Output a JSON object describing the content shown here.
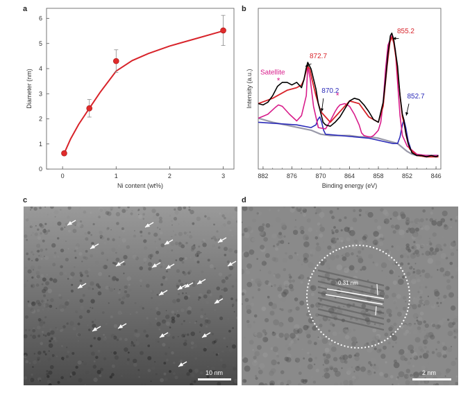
{
  "panels": {
    "a": {
      "letter": "a"
    },
    "b": {
      "letter": "b"
    },
    "c": {
      "letter": "c",
      "scale_label": "10 nm"
    },
    "d": {
      "letter": "d",
      "scale_label": "2 nm",
      "lattice_label": "0.31 nm"
    }
  },
  "chart_data": [
    {
      "type": "line",
      "panel": "a",
      "title": "",
      "xlabel": "Ni content  (wt%)",
      "ylabel": "Diameter (nm)",
      "xlim": [
        -0.3,
        3.2
      ],
      "ylim": [
        0,
        6.4
      ],
      "xticks": [
        "0",
        "1",
        "2",
        "3"
      ],
      "yticks": [
        "0",
        "1",
        "2",
        "3",
        "4",
        "5",
        "6"
      ],
      "points": [
        {
          "x": 0.03,
          "y": 0.63,
          "err": 0.08
        },
        {
          "x": 0.5,
          "y": 2.42,
          "err": 0.35
        },
        {
          "x": 1.0,
          "y": 4.3,
          "err": 0.45
        },
        {
          "x": 3.0,
          "y": 5.52,
          "err": 0.6
        }
      ],
      "fit_curve": [
        {
          "x": 0.03,
          "y": 0.63
        },
        {
          "x": 0.15,
          "y": 1.2
        },
        {
          "x": 0.3,
          "y": 1.78
        },
        {
          "x": 0.5,
          "y": 2.42
        },
        {
          "x": 0.7,
          "y": 3.05
        },
        {
          "x": 1.0,
          "y": 3.9
        },
        {
          "x": 1.3,
          "y": 4.32
        },
        {
          "x": 1.6,
          "y": 4.6
        },
        {
          "x": 2.0,
          "y": 4.9
        },
        {
          "x": 2.5,
          "y": 5.2
        },
        {
          "x": 3.0,
          "y": 5.5
        }
      ],
      "colors": {
        "curve": "#d8232a",
        "marker": "#e02b2b",
        "error": "#888888"
      }
    },
    {
      "type": "line",
      "panel": "b",
      "title": "",
      "xlabel": "Binding energy (eV)",
      "ylabel": "Intensity (a.u.)",
      "xlim": [
        883,
        845
      ],
      "xticks": [
        "882",
        "876",
        "870",
        "864",
        "858",
        "852",
        "846"
      ],
      "grid": false,
      "annotations": [
        {
          "text": "Satellite",
          "x": 880.0,
          "y": 0.66,
          "color": "#d81b8a"
        },
        {
          "text": "*",
          "x": 878.8,
          "y": 0.59,
          "color": "#d81b8a"
        },
        {
          "text": "872.7",
          "x": 870.5,
          "y": 0.78,
          "color": "#d8232a"
        },
        {
          "text": "870.2",
          "x": 868.0,
          "y": 0.52,
          "color": "#2a2ab8"
        },
        {
          "text": "*",
          "x": 866.5,
          "y": 0.48,
          "color": "#d81b8a"
        },
        {
          "text": "855.2",
          "x": 852.3,
          "y": 0.97,
          "color": "#d8232a"
        },
        {
          "text": "852.7",
          "x": 850.2,
          "y": 0.48,
          "color": "#2a2ab8"
        }
      ],
      "series": [
        {
          "name": "",
          "color": "#000000",
          "x": [
            883,
            882,
            881,
            880,
            879,
            878,
            877,
            876,
            875,
            874,
            873.5,
            873,
            872.7,
            872,
            871,
            870.5,
            870,
            869.5,
            869,
            868,
            867,
            866,
            865,
            864,
            863,
            862,
            861,
            860,
            859,
            858,
            857,
            856.5,
            856,
            855.5,
            855.2,
            854.8,
            854,
            853.5,
            853,
            852.7,
            852.3,
            851.8,
            851,
            850,
            849,
            848,
            847,
            846,
            845.5
          ],
          "y": [
            0.44,
            0.43,
            0.45,
            0.5,
            0.57,
            0.6,
            0.6,
            0.58,
            0.6,
            0.56,
            0.62,
            0.71,
            0.75,
            0.7,
            0.55,
            0.44,
            0.37,
            0.3,
            0.28,
            0.27,
            0.3,
            0.34,
            0.4,
            0.46,
            0.48,
            0.47,
            0.43,
            0.38,
            0.32,
            0.3,
            0.45,
            0.62,
            0.82,
            0.95,
            0.97,
            0.92,
            0.72,
            0.5,
            0.36,
            0.32,
            0.22,
            0.14,
            0.07,
            0.05,
            0.05,
            0.04,
            0.05,
            0.04,
            0.05
          ]
        },
        {
          "name": "",
          "color": "#d8232a",
          "x": [
            883,
            880,
            877,
            875,
            874,
            873.5,
            873,
            872.7,
            872.3,
            871.8,
            871,
            870,
            868,
            866,
            864,
            862,
            860,
            858,
            857,
            856.2,
            855.6,
            855.2,
            854.8,
            854.2,
            853.5,
            853,
            852.7,
            852.2,
            851.5,
            850,
            848,
            845.5
          ],
          "y": [
            0.44,
            0.48,
            0.54,
            0.56,
            0.58,
            0.62,
            0.69,
            0.72,
            0.7,
            0.62,
            0.5,
            0.38,
            0.3,
            0.38,
            0.46,
            0.44,
            0.34,
            0.3,
            0.42,
            0.72,
            0.9,
            0.94,
            0.9,
            0.75,
            0.5,
            0.34,
            0.3,
            0.2,
            0.1,
            0.05,
            0.04,
            0.04
          ]
        },
        {
          "name": "",
          "color": "#d81b8a",
          "x": [
            883,
            881,
            879.5,
            878.8,
            878,
            876.5,
            875,
            874,
            873,
            872.7,
            872.2,
            871.5,
            870.5,
            869,
            868,
            867,
            866.5,
            866,
            865,
            864,
            863,
            862,
            861.5,
            861,
            860,
            859.5,
            859,
            858.5,
            858,
            857.5,
            857,
            856.5,
            856,
            855.2,
            854.5,
            854,
            853.5,
            853,
            852,
            850,
            848,
            845.5
          ],
          "y": [
            0.33,
            0.36,
            0.41,
            0.43,
            0.42,
            0.36,
            0.31,
            0.35,
            0.5,
            0.72,
            0.63,
            0.42,
            0.26,
            0.25,
            0.31,
            0.38,
            0.41,
            0.43,
            0.44,
            0.42,
            0.36,
            0.28,
            0.22,
            0.2,
            0.19,
            0.19,
            0.2,
            0.22,
            0.24,
            0.3,
            0.45,
            0.7,
            0.88,
            0.95,
            0.85,
            0.6,
            0.35,
            0.2,
            0.12,
            0.06,
            0.05,
            0.05
          ]
        },
        {
          "name": "",
          "color": "#2a2ab8",
          "x": [
            883,
            875,
            872,
            871,
            870.6,
            870.2,
            869.8,
            869.4,
            869,
            866,
            860,
            855,
            854,
            853.5,
            853,
            852.7,
            852.3,
            851.8,
            851,
            850,
            845.5
          ],
          "y": [
            0.3,
            0.28,
            0.26,
            0.28,
            0.32,
            0.34,
            0.3,
            0.24,
            0.21,
            0.2,
            0.18,
            0.14,
            0.14,
            0.19,
            0.28,
            0.32,
            0.26,
            0.16,
            0.07,
            0.05,
            0.05
          ]
        },
        {
          "name": "",
          "color": "#9a9aaa",
          "x": [
            883,
            880,
            876,
            872,
            870,
            868,
            866,
            864,
            862,
            860,
            858,
            856,
            855,
            854,
            853,
            852,
            851,
            850,
            848,
            845.5
          ],
          "y": [
            0.33,
            0.3,
            0.27,
            0.24,
            0.21,
            0.2,
            0.2,
            0.2,
            0.19,
            0.19,
            0.18,
            0.16,
            0.15,
            0.14,
            0.11,
            0.08,
            0.06,
            0.05,
            0.05,
            0.05
          ]
        }
      ]
    }
  ]
}
